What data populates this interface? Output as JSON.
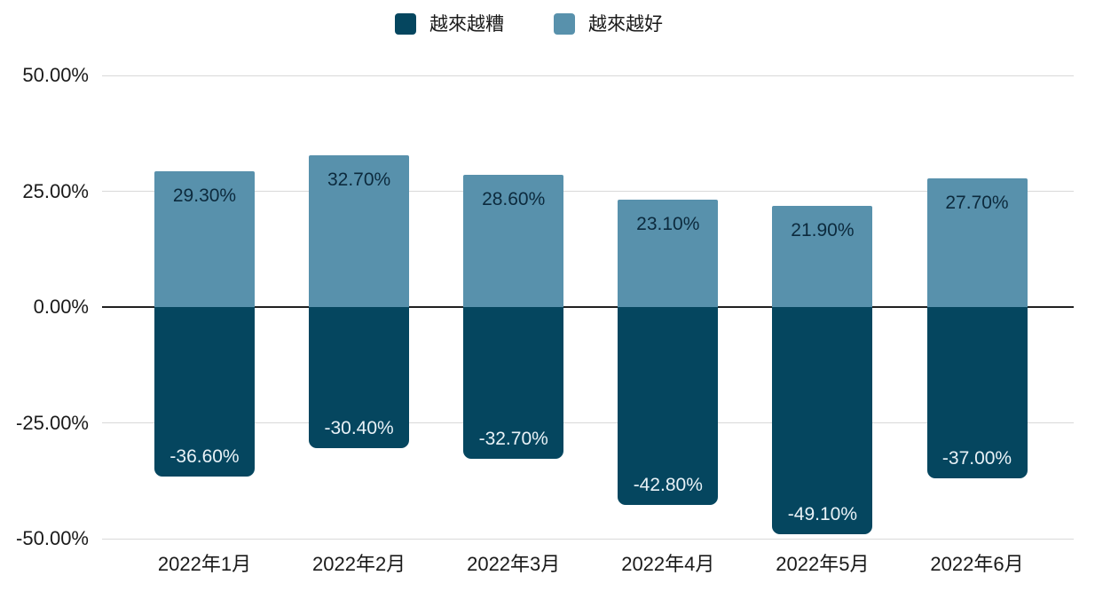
{
  "chart_data": {
    "type": "bar",
    "title": "",
    "categories": [
      "2022年1月",
      "2022年2月",
      "2022年3月",
      "2022年4月",
      "2022年5月",
      "2022年6月"
    ],
    "series": [
      {
        "name": "越來越糟",
        "color": "#05465f",
        "label_color": "#e9f2f7",
        "values": [
          -36.6,
          -30.4,
          -32.7,
          -42.8,
          -49.1,
          -37.0
        ],
        "data_labels": [
          "-36.60%",
          "-30.40%",
          "-32.70%",
          "-42.80%",
          "-49.10%",
          "-37.00%"
        ]
      },
      {
        "name": "越來越好",
        "color": "#5891ac",
        "label_color": "#0c2a3d",
        "values": [
          29.3,
          32.7,
          28.6,
          23.1,
          21.9,
          27.7
        ],
        "data_labels": [
          "29.30%",
          "32.70%",
          "28.60%",
          "23.10%",
          "21.90%",
          "27.70%"
        ]
      }
    ],
    "y_ticks": [
      {
        "value": 50,
        "label": "50.00%"
      },
      {
        "value": 25,
        "label": "25.00%"
      },
      {
        "value": 0,
        "label": "0.00%"
      },
      {
        "value": -25,
        "label": "-25.00%"
      },
      {
        "value": -50,
        "label": "-50.00%"
      }
    ],
    "ylim": [
      -50,
      50
    ],
    "grid": true,
    "legend_position": "top",
    "colors": {
      "background": "#ffffff",
      "gridline": "#d9d9d9",
      "zero_line": "#212121",
      "tick_text": "#1a1a1a"
    }
  }
}
